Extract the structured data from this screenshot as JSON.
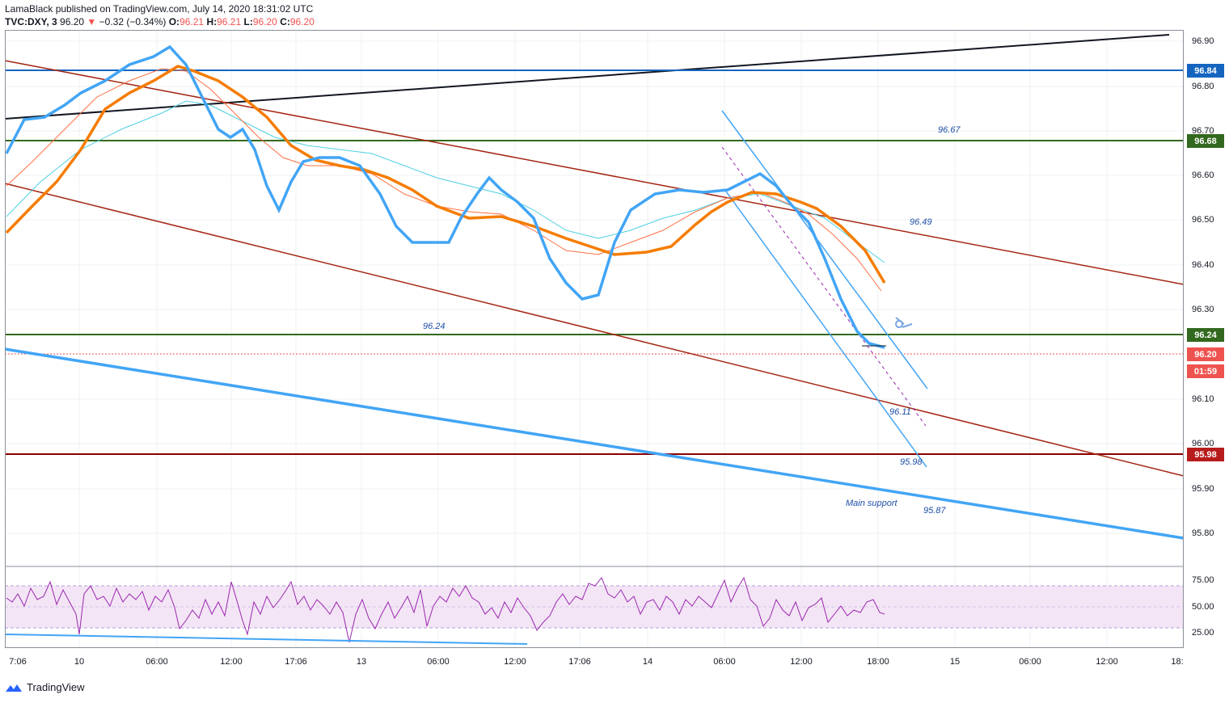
{
  "header": {
    "line1": "LamaBlack published on TradingView.com, July 14, 2020 18:31:02 UTC",
    "symbol": "TVC:DXY, 3",
    "last": "96.20",
    "arrow": "▼",
    "change": "−0.32 (−0.34%)",
    "o_label": "O:",
    "o_val": "96.21",
    "h_label": "H:",
    "h_val": "96.21",
    "l_label": "L:",
    "l_val": "96.20",
    "c_label": "C:",
    "c_val": "96.20"
  },
  "price_axis": {
    "ticks": [
      "96.90",
      "96.80",
      "96.70",
      "96.60",
      "96.50",
      "96.40",
      "96.30",
      "96.10",
      "96.00",
      "95.90",
      "95.80"
    ],
    "labels": {
      "l96_84": "96.84",
      "l96_68": "96.68",
      "l96_24": "96.24",
      "l96_20": "96.20",
      "countdown": "01:59",
      "l95_98": "95.98"
    }
  },
  "rsi_axis": {
    "ticks": [
      "75.00",
      "50.00",
      "25.00"
    ]
  },
  "time_axis": {
    "ticks": [
      "7:06",
      "10",
      "06:00",
      "12:00",
      "17:06",
      "13",
      "06:00",
      "12:00",
      "17:06",
      "14",
      "06:00",
      "12:00",
      "18:00",
      "15",
      "06:00",
      "12:00",
      "18:"
    ]
  },
  "annotations": {
    "a96_67": "96.67",
    "a96_49": "96.49",
    "a96_24": "96.24",
    "a96_11": "96.11",
    "a95_98": "95.98",
    "main_support": "Main support",
    "a95_87": "95.87"
  },
  "footer": {
    "brand": "TradingView"
  },
  "colors": {
    "blue_line": "#42a5f5",
    "ema_orange": "#f57c00",
    "red_channel": "#a52714",
    "green_level": "#33691e",
    "dark_red_level": "#8b0000",
    "level_blue": "#0d47a1",
    "rsi_purple": "#9c27b0"
  }
}
